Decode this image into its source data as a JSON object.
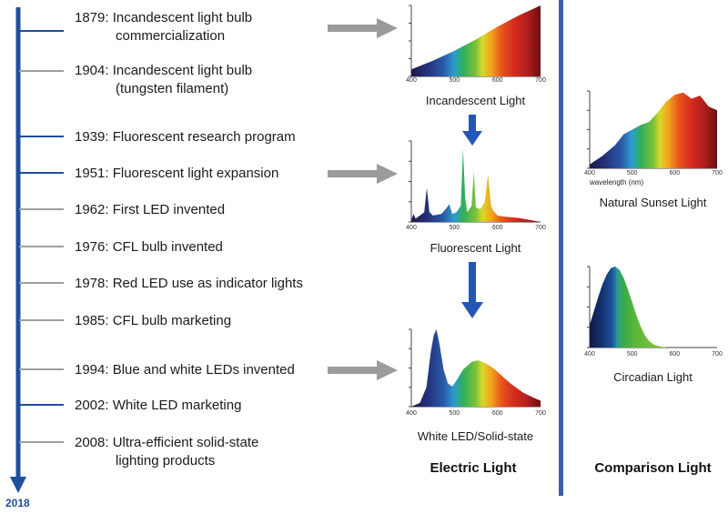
{
  "timeline": {
    "end_year": "2018",
    "events": [
      {
        "lines": [
          "1879: Incandescent light bulb",
          "commercialization"
        ],
        "tick": "blue"
      },
      {
        "lines": [
          "1904: Incandescent light bulb",
          "(tungsten filament)"
        ],
        "tick": "gray"
      },
      {
        "lines": [
          "1939: Fluorescent research program"
        ],
        "tick": "blue"
      },
      {
        "lines": [
          "1951: Fluorescent light expansion"
        ],
        "tick": "blue"
      },
      {
        "lines": [
          "1962: First LED invented"
        ],
        "tick": "gray"
      },
      {
        "lines": [
          "1976: CFL bulb invented"
        ],
        "tick": "gray"
      },
      {
        "lines": [
          "1978: Red LED use as indicator lights"
        ],
        "tick": "gray"
      },
      {
        "lines": [
          "1985: CFL bulb marketing"
        ],
        "tick": "gray"
      },
      {
        "lines": [
          "1994: Blue and white LEDs invented"
        ],
        "tick": "gray"
      },
      {
        "lines": [
          "2002: White LED marketing"
        ],
        "tick": "blue"
      },
      {
        "lines": [
          "2008: Ultra-efficient solid-state",
          "lighting products"
        ],
        "tick": "gray"
      }
    ]
  },
  "sections": {
    "electric": "Electric Light",
    "comparison": "Comparison Light"
  },
  "colors": {
    "timeline_blue": "#1f4e9c",
    "tick_gray": "#9e9e9e",
    "arrow_gray": "#9b9b9b",
    "arrow_blue": "#2456b8",
    "divider_blue": "#3a5fa8"
  },
  "chart_data": [
    {
      "type": "area",
      "title": "Incandescent Light",
      "x_ticks": [
        "400",
        "500",
        "600",
        "700"
      ],
      "xlim": [
        400,
        700
      ],
      "x": [
        400,
        450,
        500,
        550,
        600,
        650,
        700
      ],
      "y": [
        0.1,
        0.22,
        0.36,
        0.52,
        0.7,
        0.86,
        1.0
      ]
    },
    {
      "type": "area",
      "title": "Fluorescent Light",
      "x_ticks": [
        "400",
        "500",
        "600",
        "700"
      ],
      "xlim": [
        400,
        700
      ],
      "x": [
        400,
        405,
        410,
        420,
        430,
        436,
        442,
        450,
        470,
        480,
        488,
        495,
        505,
        515,
        520,
        525,
        530,
        540,
        545,
        550,
        560,
        570,
        578,
        585,
        590,
        600,
        610,
        630,
        650,
        680,
        700
      ],
      "y": [
        0.02,
        0.1,
        0.04,
        0.08,
        0.12,
        0.42,
        0.12,
        0.08,
        0.1,
        0.16,
        0.22,
        0.1,
        0.12,
        0.2,
        0.9,
        0.3,
        0.12,
        0.2,
        0.62,
        0.18,
        0.16,
        0.24,
        0.58,
        0.2,
        0.14,
        0.08,
        0.07,
        0.06,
        0.05,
        0.02,
        0.0
      ]
    },
    {
      "type": "area",
      "title": "White LED/Solid-state",
      "x_ticks": [
        "400",
        "500",
        "600",
        "700"
      ],
      "xlim": [
        400,
        700
      ],
      "x": [
        400,
        420,
        435,
        445,
        452,
        458,
        465,
        475,
        485,
        495,
        505,
        520,
        540,
        555,
        570,
        590,
        610,
        630,
        660,
        690,
        700
      ],
      "y": [
        0.0,
        0.05,
        0.25,
        0.7,
        0.92,
        1.0,
        0.82,
        0.48,
        0.3,
        0.26,
        0.34,
        0.48,
        0.58,
        0.6,
        0.57,
        0.5,
        0.4,
        0.3,
        0.18,
        0.1,
        0.08
      ]
    },
    {
      "type": "area",
      "title": "Natural Sunset Light",
      "xlabel": "wavelength (nm)",
      "x_ticks": [
        "400",
        "500",
        "600",
        "700"
      ],
      "xlim": [
        400,
        700
      ],
      "x": [
        400,
        430,
        460,
        480,
        500,
        520,
        540,
        560,
        580,
        600,
        620,
        640,
        660,
        680,
        700
      ],
      "y": [
        0.05,
        0.16,
        0.3,
        0.44,
        0.5,
        0.56,
        0.6,
        0.72,
        0.86,
        0.95,
        0.98,
        0.9,
        0.94,
        0.8,
        0.75
      ]
    },
    {
      "type": "area",
      "title": "Circadian Light",
      "x_ticks": [
        "400",
        "500",
        "600",
        "700"
      ],
      "xlim": [
        400,
        700
      ],
      "x": [
        400,
        410,
        420,
        430,
        440,
        450,
        460,
        470,
        480,
        490,
        500,
        510,
        520,
        530,
        540,
        550,
        560,
        580
      ],
      "y": [
        0.28,
        0.45,
        0.62,
        0.78,
        0.9,
        0.98,
        1.0,
        0.96,
        0.86,
        0.72,
        0.56,
        0.4,
        0.26,
        0.15,
        0.08,
        0.04,
        0.02,
        0.0
      ]
    }
  ]
}
